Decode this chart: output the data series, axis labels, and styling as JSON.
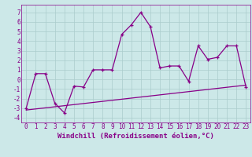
{
  "xlabel": "Windchill (Refroidissement éolien,°C)",
  "xlim": [
    -0.5,
    23.5
  ],
  "ylim": [
    -4.5,
    7.8
  ],
  "yticks": [
    -4,
    -3,
    -2,
    -1,
    0,
    1,
    2,
    3,
    4,
    5,
    6,
    7
  ],
  "xticks": [
    0,
    1,
    2,
    3,
    4,
    5,
    6,
    7,
    8,
    9,
    10,
    11,
    12,
    13,
    14,
    15,
    16,
    17,
    18,
    19,
    20,
    21,
    22,
    23
  ],
  "line1_x": [
    0,
    1,
    2,
    3,
    4,
    5,
    6,
    7,
    8,
    9,
    10,
    11,
    12,
    13,
    14,
    15,
    16,
    17,
    18,
    19,
    20,
    21,
    22,
    23
  ],
  "line1_y": [
    -3.0,
    0.6,
    0.6,
    -2.5,
    -3.5,
    -0.7,
    -0.8,
    1.0,
    1.0,
    1.0,
    4.7,
    5.7,
    7.0,
    5.5,
    1.2,
    1.4,
    1.4,
    -0.2,
    3.5,
    2.1,
    2.3,
    3.5,
    3.5,
    -0.8
  ],
  "line2_x": [
    0,
    23
  ],
  "line2_y": [
    -3.2,
    -0.6
  ],
  "line_color": "#880088",
  "bg_color": "#cce8e8",
  "grid_color": "#aacccc",
  "tick_label_fontsize": 5.5,
  "xlabel_fontsize": 6.5
}
